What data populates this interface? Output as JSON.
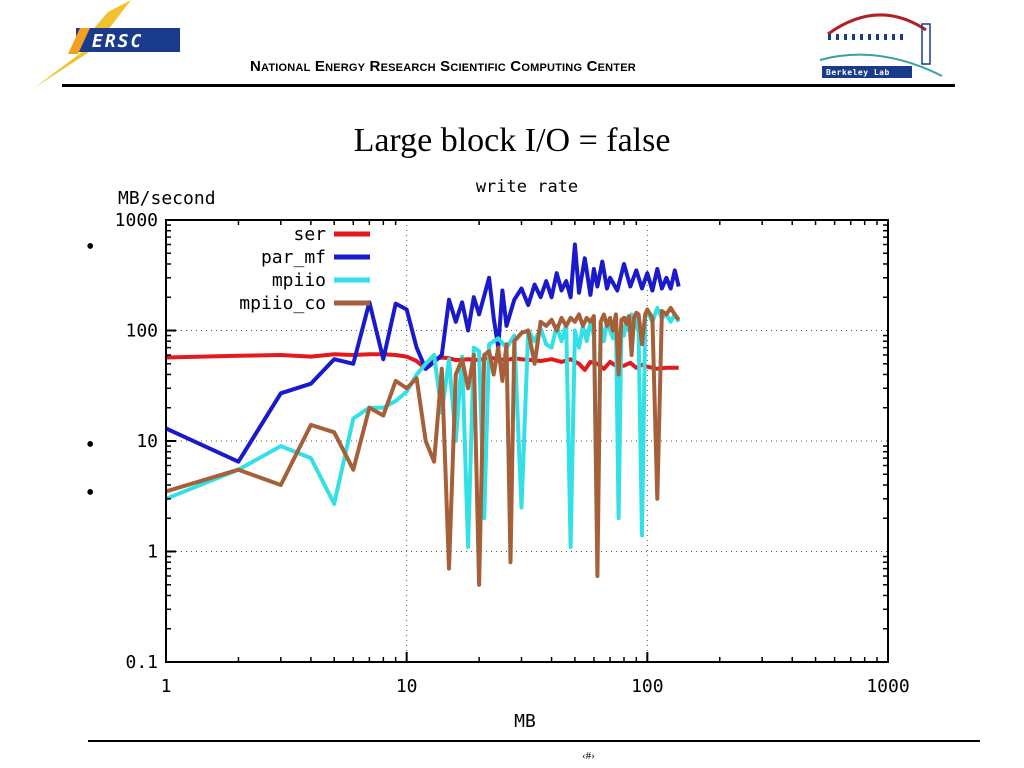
{
  "header": {
    "logo_text": "ERSC",
    "org_name": "National Energy Research Scientific Computing Center",
    "lab_logo_text": "Berkeley Lab"
  },
  "slide": {
    "title": "Large block I/O = false",
    "bullets": [
      "•",
      "•",
      "•"
    ],
    "page_number": "‹#›"
  },
  "colors": {
    "ser": "#e31a1c",
    "par_mf": "#1a1acc",
    "mpiio": "#33e0e6",
    "mpiio_co": "#a5603a"
  },
  "chart_data": {
    "type": "line",
    "title": "write rate",
    "xlabel": "MB",
    "ylabel": "MB/second",
    "xscale": "log",
    "yscale": "log",
    "xlim": [
      1,
      1000
    ],
    "ylim": [
      0.1,
      1000
    ],
    "x_ticks": [
      "1",
      "10",
      "100",
      "1000"
    ],
    "y_ticks": [
      "0.1",
      "1",
      "10",
      "100",
      "1000"
    ],
    "grid": true,
    "legend": "top-left",
    "series": [
      {
        "name": "ser",
        "points": [
          [
            1,
            57
          ],
          [
            2,
            59
          ],
          [
            3,
            60
          ],
          [
            4,
            58
          ],
          [
            5,
            61
          ],
          [
            6,
            60
          ],
          [
            7,
            61
          ],
          [
            8,
            61
          ],
          [
            9,
            60
          ],
          [
            10,
            58
          ],
          [
            11,
            53
          ],
          [
            12,
            45
          ],
          [
            13,
            55
          ],
          [
            14,
            57
          ],
          [
            15,
            56
          ],
          [
            16,
            54
          ],
          [
            18,
            55
          ],
          [
            20,
            54
          ],
          [
            22,
            57
          ],
          [
            24,
            55
          ],
          [
            26,
            54
          ],
          [
            28,
            56
          ],
          [
            30,
            55
          ],
          [
            33,
            54
          ],
          [
            36,
            53
          ],
          [
            40,
            55
          ],
          [
            44,
            52
          ],
          [
            48,
            55
          ],
          [
            52,
            50
          ],
          [
            55,
            44
          ],
          [
            58,
            52
          ],
          [
            62,
            50
          ],
          [
            66,
            45
          ],
          [
            70,
            52
          ],
          [
            75,
            47
          ],
          [
            80,
            48
          ],
          [
            85,
            51
          ],
          [
            90,
            46
          ],
          [
            95,
            49
          ],
          [
            100,
            47
          ],
          [
            110,
            45
          ],
          [
            120,
            46
          ],
          [
            135,
            46
          ]
        ]
      },
      {
        "name": "par_mf",
        "points": [
          [
            1,
            13
          ],
          [
            2,
            6.5
          ],
          [
            3,
            27
          ],
          [
            4,
            33
          ],
          [
            5,
            55
          ],
          [
            6,
            50
          ],
          [
            7,
            180
          ],
          [
            8,
            55
          ],
          [
            9,
            175
          ],
          [
            10,
            155
          ],
          [
            11,
            70
          ],
          [
            12,
            45
          ],
          [
            13,
            52
          ],
          [
            14,
            60
          ],
          [
            15,
            190
          ],
          [
            16,
            120
          ],
          [
            17,
            180
          ],
          [
            18,
            100
          ],
          [
            19,
            200
          ],
          [
            20,
            140
          ],
          [
            22,
            300
          ],
          [
            23,
            130
          ],
          [
            24,
            70
          ],
          [
            25,
            230
          ],
          [
            26,
            110
          ],
          [
            28,
            190
          ],
          [
            30,
            240
          ],
          [
            32,
            170
          ],
          [
            34,
            260
          ],
          [
            36,
            200
          ],
          [
            38,
            280
          ],
          [
            40,
            200
          ],
          [
            42,
            330
          ],
          [
            44,
            230
          ],
          [
            46,
            280
          ],
          [
            48,
            200
          ],
          [
            50,
            600
          ],
          [
            52,
            220
          ],
          [
            55,
            450
          ],
          [
            58,
            210
          ],
          [
            60,
            360
          ],
          [
            62,
            250
          ],
          [
            65,
            420
          ],
          [
            68,
            240
          ],
          [
            70,
            300
          ],
          [
            75,
            230
          ],
          [
            80,
            400
          ],
          [
            85,
            250
          ],
          [
            90,
            350
          ],
          [
            95,
            240
          ],
          [
            100,
            330
          ],
          [
            105,
            230
          ],
          [
            110,
            360
          ],
          [
            115,
            240
          ],
          [
            120,
            300
          ],
          [
            125,
            240
          ],
          [
            130,
            350
          ],
          [
            135,
            250
          ]
        ]
      },
      {
        "name": "mpiio",
        "points": [
          [
            1,
            3
          ],
          [
            2,
            5.5
          ],
          [
            3,
            9
          ],
          [
            4,
            7
          ],
          [
            5,
            2.7
          ],
          [
            6,
            16
          ],
          [
            7,
            20
          ],
          [
            8,
            20
          ],
          [
            9,
            23
          ],
          [
            10,
            28
          ],
          [
            11,
            40
          ],
          [
            12,
            50
          ],
          [
            13,
            60
          ],
          [
            14,
            18
          ],
          [
            15,
            55
          ],
          [
            16,
            10
          ],
          [
            17,
            58
          ],
          [
            18,
            1.1
          ],
          [
            19,
            70
          ],
          [
            20,
            65
          ],
          [
            21,
            2
          ],
          [
            22,
            75
          ],
          [
            24,
            85
          ],
          [
            26,
            70
          ],
          [
            28,
            90
          ],
          [
            30,
            2.5
          ],
          [
            32,
            100
          ],
          [
            34,
            80
          ],
          [
            36,
            105
          ],
          [
            38,
            75
          ],
          [
            40,
            70
          ],
          [
            42,
            110
          ],
          [
            44,
            80
          ],
          [
            46,
            115
          ],
          [
            48,
            1.1
          ],
          [
            50,
            100
          ],
          [
            52,
            70
          ],
          [
            54,
            110
          ],
          [
            56,
            80
          ],
          [
            58,
            120
          ],
          [
            60,
            90
          ],
          [
            62,
            1.5
          ],
          [
            64,
            115
          ],
          [
            66,
            80
          ],
          [
            68,
            120
          ],
          [
            70,
            100
          ],
          [
            72,
            85
          ],
          [
            74,
            125
          ],
          [
            76,
            2
          ],
          [
            78,
            110
          ],
          [
            80,
            90
          ],
          [
            82,
            130
          ],
          [
            84,
            100
          ],
          [
            86,
            140
          ],
          [
            88,
            105
          ],
          [
            90,
            130
          ],
          [
            92,
            95
          ],
          [
            95,
            1.4
          ],
          [
            98,
            130
          ],
          [
            100,
            150
          ],
          [
            105,
            120
          ],
          [
            110,
            160
          ],
          [
            115,
            130
          ],
          [
            120,
            140
          ],
          [
            125,
            120
          ],
          [
            130,
            140
          ],
          [
            135,
            120
          ]
        ]
      },
      {
        "name": "mpiio_co",
        "points": [
          [
            1,
            3.5
          ],
          [
            2,
            5.5
          ],
          [
            3,
            4
          ],
          [
            4,
            14
          ],
          [
            5,
            12
          ],
          [
            6,
            5.5
          ],
          [
            7,
            20
          ],
          [
            8,
            17
          ],
          [
            9,
            35
          ],
          [
            10,
            30
          ],
          [
            11,
            37
          ],
          [
            12,
            10
          ],
          [
            13,
            6.5
          ],
          [
            14,
            45
          ],
          [
            15,
            0.7
          ],
          [
            16,
            40
          ],
          [
            17,
            55
          ],
          [
            18,
            30
          ],
          [
            19,
            60
          ],
          [
            20,
            0.5
          ],
          [
            21,
            60
          ],
          [
            22,
            65
          ],
          [
            23,
            40
          ],
          [
            24,
            70
          ],
          [
            25,
            35
          ],
          [
            26,
            75
          ],
          [
            27,
            0.8
          ],
          [
            28,
            80
          ],
          [
            30,
            95
          ],
          [
            32,
            100
          ],
          [
            34,
            50
          ],
          [
            36,
            120
          ],
          [
            38,
            110
          ],
          [
            40,
            125
          ],
          [
            42,
            100
          ],
          [
            44,
            130
          ],
          [
            46,
            110
          ],
          [
            48,
            130
          ],
          [
            50,
            120
          ],
          [
            52,
            140
          ],
          [
            54,
            110
          ],
          [
            56,
            130
          ],
          [
            58,
            120
          ],
          [
            60,
            135
          ],
          [
            62,
            0.6
          ],
          [
            64,
            120
          ],
          [
            66,
            140
          ],
          [
            68,
            110
          ],
          [
            70,
            130
          ],
          [
            72,
            100
          ],
          [
            74,
            140
          ],
          [
            76,
            40
          ],
          [
            78,
            125
          ],
          [
            80,
            130
          ],
          [
            82,
            115
          ],
          [
            84,
            135
          ],
          [
            86,
            60
          ],
          [
            88,
            130
          ],
          [
            90,
            145
          ],
          [
            92,
            140
          ],
          [
            95,
            75
          ],
          [
            98,
            140
          ],
          [
            100,
            155
          ],
          [
            105,
            130
          ],
          [
            110,
            3
          ],
          [
            115,
            150
          ],
          [
            120,
            140
          ],
          [
            125,
            160
          ],
          [
            130,
            140
          ],
          [
            135,
            125
          ]
        ]
      }
    ]
  }
}
